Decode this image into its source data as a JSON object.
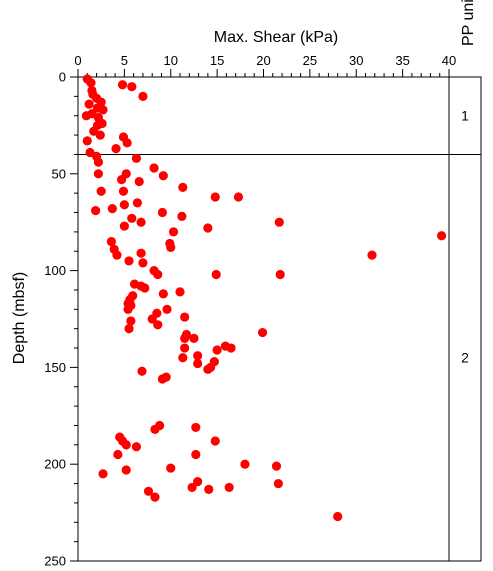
{
  "chart_data": {
    "type": "scatter",
    "title": "",
    "xlabel": "Max. Shear (kPa)",
    "ylabel": "Depth  (mbsf)",
    "xlim": [
      0,
      40
    ],
    "ylim": [
      0,
      250
    ],
    "y_inverted": true,
    "x_axis_position": "top",
    "x_major_ticks": [
      0,
      5,
      10,
      15,
      20,
      25,
      30,
      35,
      40
    ],
    "x_minor_step": 1,
    "y_major_ticks": [
      0,
      50,
      100,
      150,
      200,
      250
    ],
    "y_minor_step": 10,
    "grid": false,
    "point_color": "#ff0000",
    "series": [
      {
        "points": [
          {
            "x": 1.0,
            "y": 1
          },
          {
            "x": 1.4,
            "y": 3
          },
          {
            "x": 4.8,
            "y": 4
          },
          {
            "x": 5.8,
            "y": 5
          },
          {
            "x": 1.5,
            "y": 7
          },
          {
            "x": 1.6,
            "y": 9
          },
          {
            "x": 7.0,
            "y": 10
          },
          {
            "x": 2.0,
            "y": 11
          },
          {
            "x": 2.5,
            "y": 13
          },
          {
            "x": 1.2,
            "y": 14
          },
          {
            "x": 2.1,
            "y": 16
          },
          {
            "x": 2.7,
            "y": 17
          },
          {
            "x": 1.5,
            "y": 19
          },
          {
            "x": 0.9,
            "y": 20
          },
          {
            "x": 2.2,
            "y": 21
          },
          {
            "x": 2.6,
            "y": 24
          },
          {
            "x": 2.1,
            "y": 25
          },
          {
            "x": 1.7,
            "y": 28
          },
          {
            "x": 2.4,
            "y": 30
          },
          {
            "x": 4.9,
            "y": 31
          },
          {
            "x": 1.0,
            "y": 33
          },
          {
            "x": 5.3,
            "y": 34
          },
          {
            "x": 4.1,
            "y": 37
          },
          {
            "x": 1.3,
            "y": 39
          },
          {
            "x": 2.0,
            "y": 41
          },
          {
            "x": 6.3,
            "y": 42
          },
          {
            "x": 2.2,
            "y": 44
          },
          {
            "x": 8.2,
            "y": 47
          },
          {
            "x": 2.2,
            "y": 50
          },
          {
            "x": 5.2,
            "y": 50
          },
          {
            "x": 9.2,
            "y": 51
          },
          {
            "x": 4.7,
            "y": 53
          },
          {
            "x": 6.6,
            "y": 54
          },
          {
            "x": 11.3,
            "y": 57
          },
          {
            "x": 2.5,
            "y": 59
          },
          {
            "x": 4.9,
            "y": 59
          },
          {
            "x": 14.8,
            "y": 62
          },
          {
            "x": 17.3,
            "y": 62
          },
          {
            "x": 6.4,
            "y": 65
          },
          {
            "x": 5.0,
            "y": 66
          },
          {
            "x": 3.7,
            "y": 68
          },
          {
            "x": 1.9,
            "y": 69
          },
          {
            "x": 9.1,
            "y": 70
          },
          {
            "x": 11.2,
            "y": 72
          },
          {
            "x": 5.8,
            "y": 73
          },
          {
            "x": 6.8,
            "y": 75
          },
          {
            "x": 21.7,
            "y": 75
          },
          {
            "x": 5.0,
            "y": 77
          },
          {
            "x": 14.0,
            "y": 78
          },
          {
            "x": 10.3,
            "y": 80
          },
          {
            "x": 39.2,
            "y": 82
          },
          {
            "x": 3.6,
            "y": 85
          },
          {
            "x": 9.9,
            "y": 86
          },
          {
            "x": 10.0,
            "y": 88
          },
          {
            "x": 3.9,
            "y": 89
          },
          {
            "x": 6.8,
            "y": 91
          },
          {
            "x": 31.7,
            "y": 92
          },
          {
            "x": 4.2,
            "y": 92
          },
          {
            "x": 5.5,
            "y": 95
          },
          {
            "x": 7.0,
            "y": 96
          },
          {
            "x": 8.2,
            "y": 100
          },
          {
            "x": 8.6,
            "y": 102
          },
          {
            "x": 14.9,
            "y": 102
          },
          {
            "x": 21.8,
            "y": 102
          },
          {
            "x": 6.1,
            "y": 107
          },
          {
            "x": 6.8,
            "y": 108
          },
          {
            "x": 7.2,
            "y": 109
          },
          {
            "x": 11.0,
            "y": 111
          },
          {
            "x": 9.2,
            "y": 112
          },
          {
            "x": 5.9,
            "y": 113
          },
          {
            "x": 5.6,
            "y": 115
          },
          {
            "x": 5.4,
            "y": 117
          },
          {
            "x": 5.7,
            "y": 118
          },
          {
            "x": 5.4,
            "y": 120
          },
          {
            "x": 9.6,
            "y": 120
          },
          {
            "x": 8.5,
            "y": 122
          },
          {
            "x": 11.5,
            "y": 124
          },
          {
            "x": 8.0,
            "y": 125
          },
          {
            "x": 5.7,
            "y": 126
          },
          {
            "x": 8.6,
            "y": 128
          },
          {
            "x": 5.5,
            "y": 130
          },
          {
            "x": 19.9,
            "y": 132
          },
          {
            "x": 11.7,
            "y": 133
          },
          {
            "x": 11.5,
            "y": 135
          },
          {
            "x": 12.5,
            "y": 135
          },
          {
            "x": 15.9,
            "y": 139
          },
          {
            "x": 11.5,
            "y": 140
          },
          {
            "x": 16.5,
            "y": 140
          },
          {
            "x": 15.0,
            "y": 141
          },
          {
            "x": 12.9,
            "y": 144
          },
          {
            "x": 11.3,
            "y": 145
          },
          {
            "x": 14.7,
            "y": 147
          },
          {
            "x": 12.9,
            "y": 148
          },
          {
            "x": 14.3,
            "y": 150
          },
          {
            "x": 14.0,
            "y": 151
          },
          {
            "x": 6.9,
            "y": 152
          },
          {
            "x": 9.5,
            "y": 155
          },
          {
            "x": 9.1,
            "y": 156
          },
          {
            "x": 8.8,
            "y": 180
          },
          {
            "x": 12.7,
            "y": 181
          },
          {
            "x": 8.3,
            "y": 182
          },
          {
            "x": 4.5,
            "y": 186
          },
          {
            "x": 4.8,
            "y": 188
          },
          {
            "x": 14.8,
            "y": 188
          },
          {
            "x": 5.2,
            "y": 190
          },
          {
            "x": 6.3,
            "y": 191
          },
          {
            "x": 4.3,
            "y": 195
          },
          {
            "x": 12.7,
            "y": 195
          },
          {
            "x": 18.0,
            "y": 200
          },
          {
            "x": 21.4,
            "y": 201
          },
          {
            "x": 10.0,
            "y": 202
          },
          {
            "x": 5.2,
            "y": 203
          },
          {
            "x": 2.7,
            "y": 205
          },
          {
            "x": 12.9,
            "y": 209
          },
          {
            "x": 21.6,
            "y": 210
          },
          {
            "x": 16.3,
            "y": 212
          },
          {
            "x": 12.3,
            "y": 212
          },
          {
            "x": 14.1,
            "y": 213
          },
          {
            "x": 7.6,
            "y": 214
          },
          {
            "x": 8.3,
            "y": 217
          },
          {
            "x": 28.0,
            "y": 227
          }
        ]
      }
    ],
    "side_panel": {
      "label": "PP unit",
      "boundary_depths": [
        40
      ],
      "units": [
        {
          "label": "1",
          "top": 0,
          "bottom": 40
        },
        {
          "label": "2",
          "top": 40,
          "bottom": 250
        }
      ]
    }
  }
}
